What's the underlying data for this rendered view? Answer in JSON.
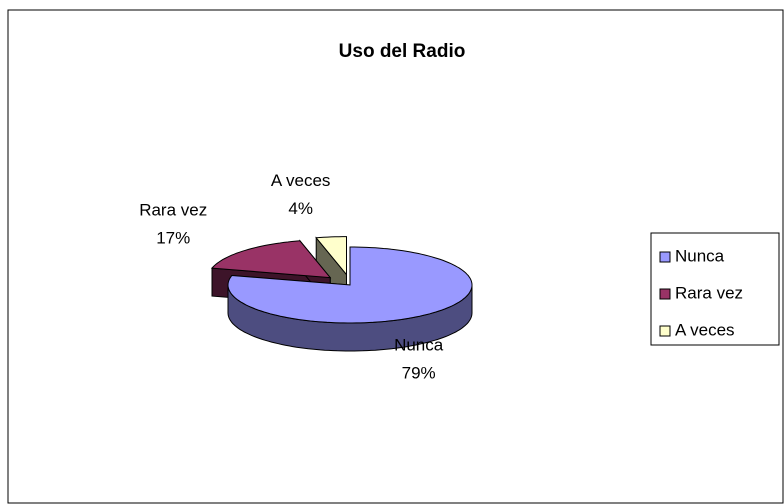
{
  "chart_data": {
    "type": "pie",
    "title": "Uso del Radio",
    "categories": [
      "Nunca",
      "Rara vez",
      "A veces"
    ],
    "values": [
      79,
      17,
      4
    ],
    "value_labels": [
      "79%",
      "17%",
      "4%"
    ],
    "colors": [
      "#9999ff",
      "#993366",
      "#ffffcc"
    ],
    "legend": "right"
  }
}
